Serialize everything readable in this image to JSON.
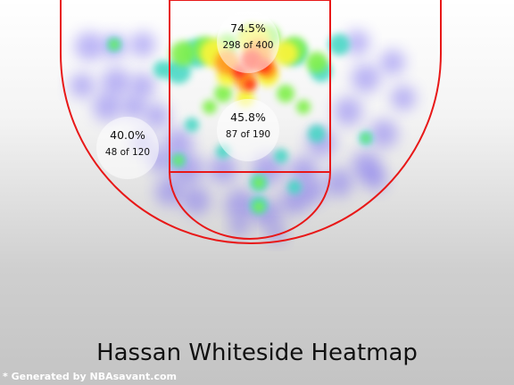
{
  "chart_data": {
    "type": "heatmap",
    "title": "Hassan Whiteside Heatmap",
    "zones": [
      {
        "id": "rim",
        "pct": "74.5%",
        "made_of": "298 of 400",
        "made": 298,
        "attempts": 400
      },
      {
        "id": "paint",
        "pct": "45.8%",
        "made_of": "87 of 190",
        "made": 87,
        "attempts": 190
      },
      {
        "id": "left-midrange",
        "pct": "40.0%",
        "made_of": "48 of 120",
        "made": 48,
        "attempts": 120
      }
    ],
    "palette": [
      "#6d5ff0",
      "#3fd7c2",
      "#7ff04a",
      "#f7f43a",
      "#ff9a1e",
      "#ff2a12"
    ],
    "court_line_color": "#e81818"
  },
  "footer": {
    "credit": "* Generated by NBAsavant.com"
  }
}
